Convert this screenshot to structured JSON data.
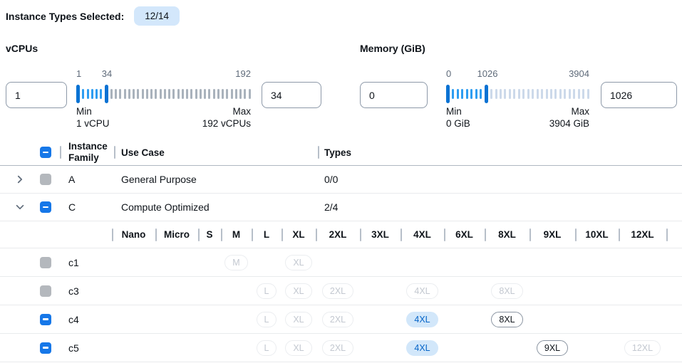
{
  "page": {
    "selected_label": "Instance Types Selected:",
    "count_badge": "12/14"
  },
  "filters": {
    "vcpus": {
      "title": "vCPUs",
      "low_value": "1",
      "high_value": "34",
      "scale_low": "1",
      "scale_mid": "34",
      "scale_high": "192",
      "min_label": "Min",
      "min_value": "1 vCPU",
      "max_label": "Max",
      "max_value": "192 vCPUs",
      "ticks_selected": 5,
      "ticks_rest": 32
    },
    "memory": {
      "title": "Memory (GiB)",
      "low_value": "0",
      "high_value": "1026",
      "scale_low": "0",
      "scale_mid": "1026",
      "scale_high": "3904",
      "min_label": "Min",
      "min_value": "0 GiB",
      "max_label": "Max",
      "max_value": "3904 GiB",
      "ticks_selected": 7,
      "ticks_rest": 22
    }
  },
  "table": {
    "header_checkbox": "indeterminate",
    "headers": {
      "family": "Instance Family",
      "use_case": "Use Case",
      "types": "Types"
    },
    "size_columns": [
      "Nano",
      "Micro",
      "S",
      "M",
      "L",
      "XL",
      "2XL",
      "3XL",
      "4XL",
      "6XL",
      "8XL",
      "9XL",
      "10XL",
      "12XL"
    ],
    "family_rows": [
      {
        "name": "A",
        "use_case": "General Purpose",
        "types": "0/0",
        "expanded": false,
        "checkbox": "disabled"
      },
      {
        "name": "C",
        "use_case": "Compute Optimized",
        "types": "2/4",
        "expanded": true,
        "checkbox": "indeterminate"
      }
    ],
    "instance_rows": [
      {
        "name": "c1",
        "checkbox": "disabled",
        "badges": {
          "M": "disabled",
          "XL": "disabled"
        }
      },
      {
        "name": "c3",
        "checkbox": "disabled",
        "badges": {
          "L": "disabled",
          "XL": "disabled",
          "2XL": "disabled",
          "4XL": "disabled",
          "8XL": "disabled"
        }
      },
      {
        "name": "c4",
        "checkbox": "indeterminate",
        "badges": {
          "L": "disabled",
          "XL": "disabled",
          "2XL": "disabled",
          "4XL": "selected",
          "8XL": "enabled"
        }
      },
      {
        "name": "c5",
        "checkbox": "indeterminate",
        "badges": {
          "L": "disabled",
          "XL": "disabled",
          "2XL": "disabled",
          "4XL": "selected",
          "9XL": "enabled",
          "12XL": "disabled"
        }
      }
    ]
  },
  "colors": {
    "accent": "#0972d3",
    "selected_tick": "#2e9df1",
    "unselected_tick_vcpu": "#a9b2bc",
    "unselected_tick_memory": "#ccd9ea",
    "count_badge_bg": "#d3e7fb",
    "selected_badge_bg": "#d2e7fa",
    "disabled_checkbox": "#b4b8bd",
    "row_border": "#e9ebed"
  }
}
